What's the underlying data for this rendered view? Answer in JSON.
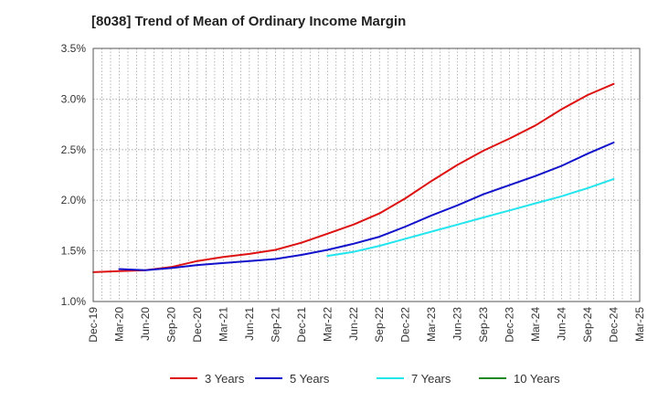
{
  "chart_data": {
    "type": "line",
    "title": "[8038]  Trend of Mean of Ordinary Income Margin",
    "xlabel": "",
    "ylabel": "",
    "ylim": [
      1.0,
      3.5
    ],
    "yticks": [
      "1.0%",
      "1.5%",
      "2.0%",
      "2.5%",
      "3.0%",
      "3.5%"
    ],
    "x_ticks": [
      "Dec-19",
      "Mar-20",
      "Jun-20",
      "Sep-20",
      "Dec-20",
      "Mar-21",
      "Jun-21",
      "Sep-21",
      "Dec-21",
      "Mar-22",
      "Jun-22",
      "Sep-22",
      "Dec-22",
      "Mar-23",
      "Jun-23",
      "Sep-23",
      "Dec-23",
      "Mar-24",
      "Jun-24",
      "Sep-24",
      "Dec-24",
      "Mar-25"
    ],
    "grid": true,
    "legend": "bottom",
    "series": [
      {
        "name": "3 Years",
        "color": "#dd1111",
        "start_index": 0,
        "values": [
          1.29,
          1.3,
          1.31,
          1.34,
          1.4,
          1.44,
          1.47,
          1.51,
          1.58,
          1.67,
          1.76,
          1.87,
          2.02,
          2.19,
          2.35,
          2.49,
          2.61,
          2.74,
          2.9,
          3.04,
          3.15
        ]
      },
      {
        "name": "5 Years",
        "color": "#1111cc",
        "start_index": 1,
        "values": [
          1.32,
          1.31,
          1.33,
          1.36,
          1.38,
          1.4,
          1.42,
          1.46,
          1.51,
          1.57,
          1.64,
          1.74,
          1.85,
          1.95,
          2.06,
          2.15,
          2.24,
          2.34,
          2.46,
          2.57
        ]
      },
      {
        "name": "7 Years",
        "color": "#22e5ee",
        "start_index": 9,
        "values": [
          1.45,
          1.49,
          1.55,
          1.62,
          1.69,
          1.76,
          1.83,
          1.9,
          1.97,
          2.04,
          2.12,
          2.21
        ]
      },
      {
        "name": "10 Years",
        "color": "#228822",
        "start_index": 0,
        "values": []
      }
    ]
  }
}
